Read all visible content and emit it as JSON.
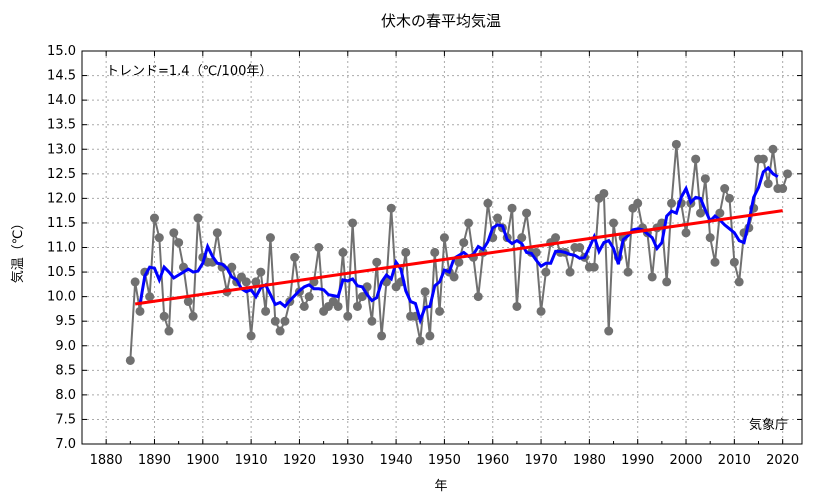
{
  "chart_data": {
    "type": "line",
    "title": "伏木の春平均気温",
    "xlabel": "年",
    "ylabel": "気温（℃）",
    "xlim": [
      1875,
      2024
    ],
    "ylim": [
      7.0,
      15.0
    ],
    "x_ticks": [
      1880,
      1890,
      1900,
      1910,
      1920,
      1930,
      1940,
      1950,
      1960,
      1970,
      1980,
      1990,
      2000,
      2010,
      2020
    ],
    "y_ticks": [
      "7.0",
      "7.5",
      "8.0",
      "8.5",
      "9.0",
      "9.5",
      "10.0",
      "10.5",
      "11.0",
      "11.5",
      "12.0",
      "12.5",
      "13.0",
      "13.5",
      "14.0",
      "14.5",
      "15.0"
    ],
    "grid": true,
    "annotation": "トレンド=1.4（℃/100年）",
    "credit": "気象庁",
    "colors": {
      "annual": "#707070",
      "moving_average": "#0000ff",
      "trend": "#ff0000"
    },
    "start_year": 1885,
    "annual_values": [
      8.7,
      10.3,
      9.7,
      10.5,
      10.0,
      11.6,
      11.2,
      9.6,
      9.3,
      11.3,
      11.1,
      10.6,
      9.9,
      9.6,
      11.6,
      10.8,
      10.7,
      10.7,
      11.3,
      10.6,
      10.1,
      10.6,
      10.3,
      10.4,
      10.3,
      9.2,
      10.3,
      10.5,
      9.7,
      11.2,
      9.5,
      9.3,
      9.5,
      9.9,
      10.8,
      10.1,
      9.8,
      10.0,
      10.3,
      11.0,
      9.7,
      9.8,
      9.9,
      9.8,
      10.9,
      9.6,
      11.5,
      9.8,
      10.0,
      10.2,
      9.5,
      10.7,
      9.2,
      10.3,
      11.8,
      10.2,
      10.3,
      10.9,
      9.6,
      9.6,
      9.1,
      10.1,
      9.2,
      10.9,
      9.7,
      11.2,
      10.5,
      10.4,
      10.7,
      11.1,
      11.5,
      10.8,
      10.0,
      10.9,
      11.9,
      11.2,
      11.6,
      11.4,
      11.2,
      11.8,
      9.8,
      11.2,
      11.7,
      10.9,
      10.9,
      9.7,
      10.5,
      11.1,
      11.2,
      10.9,
      10.9,
      10.5,
      11.0,
      11.0,
      10.8,
      10.6,
      10.6,
      12.0,
      12.1,
      9.3,
      11.5,
      10.8,
      11.2,
      10.5,
      11.8,
      11.9,
      11.4,
      11.3,
      10.4,
      11.4,
      11.5,
      10.3,
      11.9,
      13.1,
      11.9,
      11.3,
      11.9,
      12.8,
      11.7,
      12.4,
      11.2,
      10.7,
      11.7,
      12.2,
      12.0,
      10.7,
      10.3,
      11.3,
      11.4,
      11.8,
      12.8,
      12.8,
      12.3,
      13.0,
      12.2,
      12.2,
      12.5
    ],
    "moving_average_window": 5,
    "trend": {
      "slope_per_100yr": 1.4,
      "start": {
        "x": 1886,
        "y": 9.85
      },
      "end": {
        "x": 2020,
        "y": 11.75
      }
    }
  }
}
